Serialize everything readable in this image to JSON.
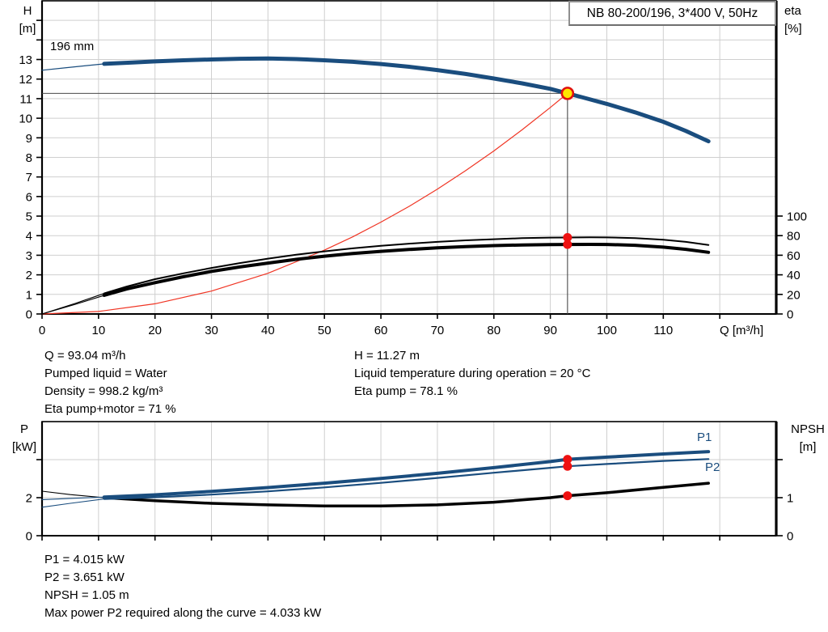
{
  "header": {
    "title_box": "NB 80-200/196, 3*400 V, 50Hz"
  },
  "axes": {
    "h": [
      "H",
      "[m]"
    ],
    "eta": [
      "eta",
      "[%]"
    ],
    "q": "Q [m³/h]",
    "p": [
      "P",
      "[kW]"
    ],
    "npsh": [
      "NPSH",
      "[m]"
    ]
  },
  "curve_labels": {
    "impeller": "196 mm",
    "p1": "P1",
    "p2": "P2"
  },
  "info": {
    "top_left": [
      "Q = 93.04 m³/h",
      "Pumped liquid = Water",
      "Density = 998.2 kg/m³",
      "Eta pump+motor = 71 %"
    ],
    "top_right": [
      "H = 11.27 m",
      "Liquid temperature during operation = 20 °C",
      "Eta pump = 78.1 %"
    ],
    "bottom": [
      "P1 = 4.015 kW",
      "P2 = 3.651 kW",
      "NPSH = 1.05 m",
      "Max power P2 required along the curve = 4.033 kW"
    ]
  },
  "colors": {
    "curve_blue": "#1A4D7E",
    "curve_black": "#000000",
    "system_red": "#F03524",
    "dot_red": "#EE1111",
    "duty_fill": "#FFE600",
    "duty_ring": "#E01010",
    "grid": "#CFCFCF",
    "guide": "#4A4A4A",
    "frame": "#000000",
    "box_border": "#8F8F8F"
  },
  "duty_point": {
    "q": 93.04,
    "h": 11.27,
    "eta_pump": 78.1,
    "eta_pump_motor": 71,
    "p1": 4.015,
    "p2": 3.651,
    "npsh": 1.05
  },
  "chart_data": [
    {
      "type": "line",
      "title": "NB 80-200/196, 3*400 V, 50Hz",
      "xlabel": "Q [m³/h]",
      "ylabel_left": "H [m]",
      "ylabel_right": "eta [%]",
      "xmax": 130,
      "ylim_left": [
        0,
        16
      ],
      "ylim_right": [
        0,
        320
      ],
      "grid": {
        "x": [
          10,
          20,
          30,
          40,
          50,
          60,
          70,
          80,
          90,
          100,
          110,
          120
        ],
        "y": [
          {
            "axis": "H",
            "values": [
              1,
              2,
              3,
              4,
              5,
              6,
              7,
              8,
              9,
              10,
              11,
              12,
              13,
              14,
              15
            ]
          }
        ]
      },
      "ticks": [
        {
          "side": "bottom",
          "axis": "x",
          "pos": [
            0,
            10,
            20,
            30,
            40,
            50,
            60,
            70,
            80,
            90,
            100,
            110,
            120
          ],
          "labels": [
            "0",
            "10",
            "20",
            "30",
            "40",
            "50",
            "60",
            "70",
            "80",
            "90",
            "100",
            "110",
            ""
          ]
        },
        {
          "side": "left",
          "axis": "H",
          "pos": [
            0,
            1,
            2,
            3,
            4,
            5,
            6,
            7,
            8,
            9,
            10,
            11,
            12,
            13,
            14,
            15
          ],
          "labels": [
            "0",
            "1",
            "2",
            "3",
            "4",
            "5",
            "6",
            "7",
            "8",
            "9",
            "10",
            "11",
            "12",
            "13",
            "",
            ""
          ]
        },
        {
          "side": "right",
          "axis": "eta",
          "pos": [
            0,
            20,
            40,
            60,
            80,
            100
          ],
          "labels": [
            "0",
            "20",
            "40",
            "60",
            "80",
            "100"
          ]
        }
      ],
      "guides": [
        {
          "dir": "h",
          "axis": "H",
          "v": 11.27,
          "q1": 0,
          "q2": 93.04
        },
        {
          "dir": "v",
          "axis": "H",
          "q": 93.04,
          "v1": 0,
          "v2": 11.27
        }
      ],
      "series": [
        {
          "name": "system-curve",
          "axis": "H",
          "color": "#F03524",
          "width": 1.2,
          "points": [
            [
              0,
              0
            ],
            [
              10,
              0.13
            ],
            [
              20,
              0.52
            ],
            [
              30,
              1.17
            ],
            [
              40,
              2.08
            ],
            [
              50,
              3.26
            ],
            [
              55,
              3.94
            ],
            [
              60,
              4.69
            ],
            [
              65,
              5.5
            ],
            [
              70,
              6.38
            ],
            [
              75,
              7.32
            ],
            [
              80,
              8.33
            ],
            [
              85,
              9.41
            ],
            [
              90,
              10.55
            ],
            [
              93.04,
              11.27
            ]
          ]
        },
        {
          "name": "eta-pump-extension",
          "axis": "eta",
          "color": "#000000",
          "width": 1.1,
          "points": [
            [
              0,
              0
            ],
            [
              6,
              11
            ],
            [
              11,
              21
            ]
          ]
        },
        {
          "name": "eta-pump-curve",
          "axis": "eta",
          "color": "#000000",
          "width": 2,
          "points": [
            [
              11,
              21
            ],
            [
              15,
              28
            ],
            [
              20,
              35.5
            ],
            [
              25,
              41.5
            ],
            [
              30,
              47
            ],
            [
              35,
              52
            ],
            [
              40,
              56.5
            ],
            [
              45,
              60.5
            ],
            [
              50,
              64
            ],
            [
              55,
              67
            ],
            [
              60,
              69.6
            ],
            [
              65,
              71.8
            ],
            [
              70,
              73.6
            ],
            [
              75,
              75.2
            ],
            [
              80,
              76.4
            ],
            [
              85,
              77.4
            ],
            [
              90,
              78
            ],
            [
              93.04,
              78.1
            ],
            [
              97,
              78.3
            ],
            [
              100,
              78.2
            ],
            [
              105,
              77.5
            ],
            [
              110,
              75.8
            ],
            [
              114,
              73.6
            ],
            [
              118,
              70.5
            ]
          ]
        },
        {
          "name": "eta-pump-motor-extension",
          "axis": "eta",
          "color": "#000000",
          "width": 1.1,
          "points": [
            [
              0,
              0
            ],
            [
              6,
              10
            ],
            [
              11,
              19
            ]
          ]
        },
        {
          "name": "eta-pump-motor-curve",
          "axis": "eta",
          "color": "#000000",
          "width": 4,
          "points": [
            [
              11,
              19
            ],
            [
              15,
              25.5
            ],
            [
              20,
              32
            ],
            [
              25,
              38
            ],
            [
              30,
              43.5
            ],
            [
              35,
              48
            ],
            [
              40,
              52
            ],
            [
              45,
              55.8
            ],
            [
              50,
              59
            ],
            [
              55,
              61.8
            ],
            [
              60,
              64
            ],
            [
              65,
              65.9
            ],
            [
              70,
              67.5
            ],
            [
              75,
              68.8
            ],
            [
              80,
              69.8
            ],
            [
              85,
              70.5
            ],
            [
              90,
              70.9
            ],
            [
              93.04,
              71
            ],
            [
              97,
              71.1
            ],
            [
              100,
              71
            ],
            [
              105,
              70.2
            ],
            [
              110,
              68.3
            ],
            [
              114,
              66
            ],
            [
              118,
              63
            ]
          ]
        },
        {
          "name": "pump-curve-extension",
          "axis": "H",
          "color": "#1A4D7E",
          "width": 1.2,
          "points": [
            [
              0,
              12.45
            ],
            [
              4,
              12.57
            ],
            [
              8,
              12.69
            ],
            [
              11,
              12.78
            ]
          ]
        },
        {
          "name": "pump-curve-196mm",
          "axis": "H",
          "color": "#1A4D7E",
          "width": 5,
          "points": [
            [
              11,
              12.78
            ],
            [
              16,
              12.85
            ],
            [
              20,
              12.9
            ],
            [
              25,
              12.96
            ],
            [
              30,
              13.0
            ],
            [
              35,
              13.04
            ],
            [
              40,
              13.05
            ],
            [
              45,
              13.02
            ],
            [
              50,
              12.96
            ],
            [
              55,
              12.88
            ],
            [
              60,
              12.77
            ],
            [
              65,
              12.63
            ],
            [
              70,
              12.46
            ],
            [
              75,
              12.26
            ],
            [
              80,
              12.03
            ],
            [
              85,
              11.78
            ],
            [
              90,
              11.5
            ],
            [
              93.04,
              11.27
            ],
            [
              95,
              11.12
            ],
            [
              100,
              10.73
            ],
            [
              105,
              10.3
            ],
            [
              110,
              9.82
            ],
            [
              114,
              9.35
            ],
            [
              118,
              8.82
            ]
          ]
        }
      ],
      "markers": [
        {
          "type": "dot",
          "axis": "eta",
          "q": 93.04,
          "v": 78.1
        },
        {
          "type": "dot",
          "axis": "eta",
          "q": 93.04,
          "v": 71
        },
        {
          "type": "duty",
          "axis": "H",
          "q": 93.04,
          "v": 11.27
        }
      ]
    },
    {
      "type": "line",
      "title": "Power and NPSH",
      "xlabel": "",
      "ylabel_left": "P [kW]",
      "ylabel_right": "NPSH [m]",
      "xmax": 130,
      "ylim_left": [
        0,
        6
      ],
      "ylim_right": [
        0,
        3
      ],
      "grid": {
        "x": [
          10,
          20,
          30,
          40,
          50,
          60,
          70,
          80,
          90,
          100,
          110,
          120
        ],
        "y": [
          {
            "axis": "P",
            "values": [
              2,
              4
            ]
          }
        ]
      },
      "ticks": [
        {
          "side": "bottom",
          "axis": "x",
          "pos": [
            0,
            10,
            20,
            30,
            40,
            50,
            60,
            70,
            80,
            90,
            100,
            110,
            120
          ],
          "labels": [
            "",
            "",
            "",
            "",
            "",
            "",
            "",
            "",
            "",
            "",
            "",
            "",
            ""
          ]
        },
        {
          "side": "left",
          "axis": "P",
          "pos": [
            0,
            2,
            4
          ],
          "labels": [
            "0",
            "2",
            ""
          ]
        },
        {
          "side": "right",
          "axis": "NPSH",
          "pos": [
            0,
            1,
            2
          ],
          "labels": [
            "0",
            "1",
            ""
          ]
        }
      ],
      "guides": [],
      "series": [
        {
          "name": "npsh-extension",
          "axis": "NPSH",
          "color": "#000000",
          "width": 1.1,
          "points": [
            [
              0,
              1.17
            ],
            [
              5,
              1.08
            ],
            [
              11,
              1.0
            ]
          ]
        },
        {
          "name": "npsh-curve",
          "axis": "NPSH",
          "color": "#000000",
          "width": 3.5,
          "points": [
            [
              11,
              1.0
            ],
            [
              20,
              0.92
            ],
            [
              30,
              0.85
            ],
            [
              40,
              0.81
            ],
            [
              50,
              0.78
            ],
            [
              60,
              0.78
            ],
            [
              70,
              0.81
            ],
            [
              80,
              0.88
            ],
            [
              90,
              1.0
            ],
            [
              93.04,
              1.05
            ],
            [
              100,
              1.13
            ],
            [
              110,
              1.27
            ],
            [
              118,
              1.38
            ]
          ]
        },
        {
          "name": "p2-extension",
          "axis": "P",
          "color": "#1A4D7E",
          "width": 1.1,
          "points": [
            [
              0,
              1.5
            ],
            [
              5,
              1.7
            ],
            [
              11,
              1.93
            ]
          ]
        },
        {
          "name": "p2-curve",
          "axis": "P",
          "color": "#1A4D7E",
          "width": 2.2,
          "points": [
            [
              11,
              1.93
            ],
            [
              20,
              2.02
            ],
            [
              30,
              2.16
            ],
            [
              40,
              2.33
            ],
            [
              50,
              2.54
            ],
            [
              60,
              2.78
            ],
            [
              70,
              3.04
            ],
            [
              80,
              3.31
            ],
            [
              90,
              3.57
            ],
            [
              93.04,
              3.651
            ],
            [
              100,
              3.77
            ],
            [
              110,
              3.93
            ],
            [
              118,
              4.03
            ]
          ]
        },
        {
          "name": "p1-extension",
          "axis": "P",
          "color": "#1A4D7E",
          "width": 1.1,
          "points": [
            [
              0,
              1.9
            ],
            [
              5,
              1.96
            ],
            [
              11,
              2.03
            ]
          ]
        },
        {
          "name": "p1-curve",
          "axis": "P",
          "color": "#1A4D7E",
          "width": 4,
          "points": [
            [
              11,
              2.03
            ],
            [
              20,
              2.15
            ],
            [
              30,
              2.33
            ],
            [
              40,
              2.53
            ],
            [
              50,
              2.76
            ],
            [
              60,
              3.01
            ],
            [
              70,
              3.28
            ],
            [
              80,
              3.58
            ],
            [
              90,
              3.9
            ],
            [
              93.04,
              4.015
            ],
            [
              100,
              4.13
            ],
            [
              110,
              4.3
            ],
            [
              118,
              4.42
            ]
          ]
        }
      ],
      "markers": [
        {
          "type": "dot",
          "axis": "P",
          "q": 93.04,
          "v": 4.015
        },
        {
          "type": "dot",
          "axis": "P",
          "q": 93.04,
          "v": 3.651
        },
        {
          "type": "dot",
          "axis": "NPSH",
          "q": 93.04,
          "v": 1.05
        }
      ]
    }
  ]
}
